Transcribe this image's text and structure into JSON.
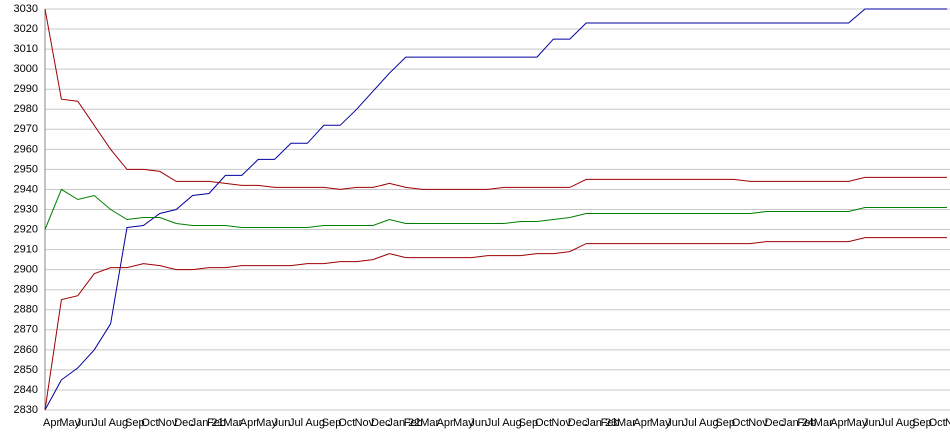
{
  "chart_data": {
    "type": "line",
    "categories": [
      "Apr",
      "May",
      "Jun",
      "Jul",
      "Aug",
      "Sep",
      "Oct",
      "Nov",
      "Dec",
      "Jan 21",
      "Feb",
      "Mar",
      "Apr",
      "May",
      "Jun",
      "Jul",
      "Aug",
      "Sep",
      "Oct",
      "Nov",
      "Dec",
      "Jan 22",
      "Feb",
      "Mar",
      "Apr",
      "May",
      "Jun",
      "Jul",
      "Aug",
      "Sep",
      "Oct",
      "Nov",
      "Dec",
      "Jan 23",
      "Feb",
      "Mar",
      "Apr",
      "May",
      "Jun",
      "Jul",
      "Aug",
      "Sep",
      "Oct",
      "Nov",
      "Dec",
      "Jan 24",
      "Feb",
      "Mar",
      "Apr",
      "May",
      "Jun",
      "Jul",
      "Aug",
      "Sep",
      "Oct",
      "Nov"
    ],
    "series": [
      {
        "color": "#0000a0",
        "values": [
          2830,
          2845,
          2851,
          2860,
          2873,
          2921,
          2922,
          2928,
          2930,
          2937,
          2938,
          2947,
          2947,
          2955,
          2955,
          2963,
          2963,
          2972,
          2972,
          2980,
          2989,
          2998,
          3006,
          3006,
          3006,
          3006,
          3006,
          3006,
          3006,
          3006,
          3006,
          3015,
          3015,
          3023,
          3023,
          3023,
          3023,
          3023,
          3023,
          3023,
          3023,
          3023,
          3023,
          3023,
          3023,
          3023,
          3023,
          3023,
          3023,
          3023,
          3030,
          3030,
          3030,
          3030,
          3030,
          3030
        ]
      },
      {
        "color": "#a00000",
        "values": [
          3030,
          2985,
          2984,
          2972,
          2960,
          2950,
          2950,
          2949,
          2944,
          2944,
          2944,
          2943,
          2942,
          2942,
          2941,
          2941,
          2941,
          2941,
          2940,
          2941,
          2941,
          2943,
          2941,
          2940,
          2940,
          2940,
          2940,
          2940,
          2941,
          2941,
          2941,
          2941,
          2941,
          2945,
          2945,
          2945,
          2945,
          2945,
          2945,
          2945,
          2945,
          2945,
          2945,
          2944,
          2944,
          2944,
          2944,
          2944,
          2944,
          2944,
          2946,
          2946,
          2946,
          2946,
          2946,
          2946
        ]
      },
      {
        "color": "#008000",
        "values": [
          2920,
          2940,
          2935,
          2937,
          2930,
          2925,
          2926,
          2926,
          2923,
          2922,
          2922,
          2922,
          2921,
          2921,
          2921,
          2921,
          2921,
          2922,
          2922,
          2922,
          2922,
          2925,
          2923,
          2923,
          2923,
          2923,
          2923,
          2923,
          2923,
          2924,
          2924,
          2925,
          2926,
          2928,
          2928,
          2928,
          2928,
          2928,
          2928,
          2928,
          2928,
          2928,
          2928,
          2928,
          2929,
          2929,
          2929,
          2929,
          2929,
          2929,
          2931,
          2931,
          2931,
          2931,
          2931,
          2931
        ]
      },
      {
        "color": "#a00000",
        "values": [
          2830,
          2885,
          2887,
          2898,
          2901,
          2901,
          2903,
          2902,
          2900,
          2900,
          2901,
          2901,
          2902,
          2902,
          2902,
          2902,
          2903,
          2903,
          2904,
          2904,
          2905,
          2908,
          2906,
          2906,
          2906,
          2906,
          2906,
          2907,
          2907,
          2907,
          2908,
          2908,
          2909,
          2913,
          2913,
          2913,
          2913,
          2913,
          2913,
          2913,
          2913,
          2913,
          2913,
          2913,
          2914,
          2914,
          2914,
          2914,
          2914,
          2914,
          2916,
          2916,
          2916,
          2916,
          2916,
          2916
        ]
      }
    ],
    "ylim": [
      2830,
      3030
    ],
    "yticks": [
      2830,
      2840,
      2850,
      2860,
      2870,
      2880,
      2890,
      2900,
      2910,
      2920,
      2930,
      2940,
      2950,
      2960,
      2970,
      2980,
      2990,
      3000,
      3010,
      3020,
      3030
    ],
    "grid": true
  }
}
